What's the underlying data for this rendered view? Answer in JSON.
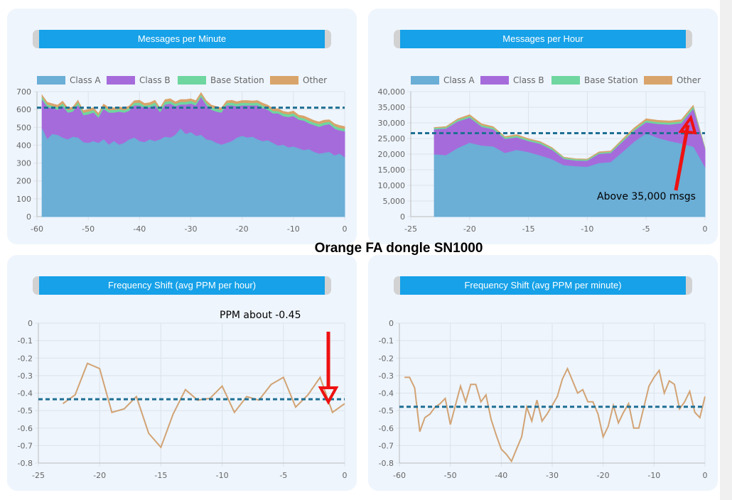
{
  "page_title": "Orange FA dongle SN1000",
  "colors": {
    "panel_bg": "#eef5fd",
    "title_blue": "#16a1e8",
    "class_a": "#6baed6",
    "class_b": "#a66bdb",
    "base_station": "#6fd6a0",
    "other": "#d9a46b",
    "avg_line": "#1f6f93",
    "ppm_line": "#d2a374",
    "arrow": "#ee1111"
  },
  "chart_data": [
    {
      "id": "mpm",
      "type": "area",
      "title": "Messages per Minute",
      "legend": [
        "Class A",
        "Class B",
        "Base Station",
        "Other"
      ],
      "legend_position": "top",
      "x": [
        -59,
        -58,
        -57,
        -56,
        -55,
        -54,
        -53,
        -52,
        -51,
        -50,
        -49,
        -48,
        -47,
        -46,
        -45,
        -44,
        -43,
        -42,
        -41,
        -40,
        -39,
        -38,
        -37,
        -36,
        -35,
        -34,
        -33,
        -32,
        -31,
        -30,
        -29,
        -28,
        -27,
        -26,
        -25,
        -24,
        -23,
        -22,
        -21,
        -20,
        -19,
        -18,
        -17,
        -16,
        -15,
        -14,
        -13,
        -12,
        -11,
        -10,
        -9,
        -8,
        -7,
        -6,
        -5,
        -4,
        -3,
        -2,
        -1,
        0
      ],
      "series": [
        {
          "name": "Class A",
          "values": [
            490,
            430,
            460,
            455,
            440,
            430,
            445,
            440,
            415,
            410,
            420,
            410,
            430,
            400,
            420,
            400,
            410,
            430,
            440,
            420,
            415,
            430,
            420,
            430,
            445,
            440,
            455,
            490,
            460,
            470,
            450,
            455,
            430,
            425,
            410,
            400,
            410,
            420,
            440,
            450,
            440,
            445,
            430,
            420,
            425,
            410,
            395,
            400,
            385,
            390,
            380,
            370,
            375,
            360,
            350,
            355,
            360,
            340,
            350,
            330
          ]
        },
        {
          "name": "Class B",
          "values": [
            160,
            180,
            145,
            140,
            175,
            150,
            140,
            180,
            150,
            160,
            160,
            140,
            170,
            180,
            160,
            185,
            170,
            160,
            180,
            200,
            190,
            180,
            200,
            150,
            180,
            190,
            160,
            135,
            165,
            160,
            170,
            210,
            190,
            170,
            175,
            180,
            210,
            200,
            175,
            170,
            180,
            175,
            190,
            185,
            170,
            165,
            180,
            160,
            170,
            170,
            160,
            165,
            145,
            150,
            150,
            155,
            155,
            150,
            130,
            145
          ]
        },
        {
          "name": "Base Station",
          "values": [
            15,
            14,
            13,
            14,
            15,
            14,
            13,
            15,
            14,
            15,
            14,
            13,
            15,
            14,
            15,
            14,
            13,
            15,
            14,
            15,
            14,
            13,
            15,
            14,
            15,
            14,
            13,
            15,
            14,
            15,
            14,
            13,
            15,
            14,
            15,
            14,
            13,
            15,
            14,
            15,
            14,
            13,
            15,
            14,
            15,
            14,
            13,
            15,
            14,
            15,
            14,
            13,
            15,
            14,
            15,
            14,
            13,
            15,
            14,
            14
          ]
        },
        {
          "name": "Other",
          "values": [
            15,
            16,
            14,
            15,
            16,
            14,
            15,
            16,
            14,
            15,
            16,
            14,
            15,
            16,
            14,
            15,
            16,
            14,
            15,
            16,
            14,
            15,
            16,
            14,
            15,
            16,
            14,
            15,
            16,
            14,
            15,
            16,
            14,
            15,
            16,
            14,
            15,
            16,
            14,
            15,
            16,
            14,
            15,
            16,
            14,
            15,
            16,
            14,
            15,
            16,
            14,
            15,
            16,
            14,
            15,
            16,
            14,
            15,
            16,
            15
          ]
        }
      ],
      "average": 610,
      "xlim": [
        -60,
        0
      ],
      "ylim": [
        0,
        700
      ],
      "xticks": [
        -60,
        -50,
        -40,
        -30,
        -20,
        -10,
        0
      ],
      "yticks": [
        0,
        100,
        200,
        300,
        400,
        500,
        600,
        700
      ],
      "grid": true
    },
    {
      "id": "mph",
      "type": "area",
      "title": "Messages per Hour",
      "legend": [
        "Class A",
        "Class B",
        "Base Station",
        "Other"
      ],
      "legend_position": "top",
      "x": [
        -23,
        -22,
        -21,
        -20,
        -19,
        -18,
        -17,
        -16,
        -15,
        -14,
        -13,
        -12,
        -11,
        -10,
        -9,
        -8,
        -7,
        -6,
        -5,
        -4,
        -3,
        -2,
        -1,
        0
      ],
      "series": [
        {
          "name": "Class A",
          "values": [
            19800,
            19500,
            21800,
            23500,
            22600,
            22300,
            20200,
            21200,
            20500,
            19400,
            18200,
            16300,
            16000,
            15800,
            17000,
            17300,
            20500,
            23800,
            26500,
            25000,
            24000,
            23200,
            22200,
            15500
          ]
        },
        {
          "name": "Class B",
          "values": [
            8000,
            8500,
            8500,
            8000,
            6000,
            5500,
            4500,
            4000,
            3500,
            3700,
            3000,
            2000,
            1800,
            1900,
            2900,
            2900,
            3300,
            3500,
            3500,
            4500,
            5300,
            6500,
            12000,
            5800
          ]
        },
        {
          "name": "Base Station",
          "values": [
            400,
            400,
            500,
            500,
            500,
            500,
            500,
            500,
            500,
            500,
            500,
            400,
            400,
            400,
            400,
            400,
            500,
            500,
            600,
            600,
            600,
            600,
            700,
            300
          ]
        },
        {
          "name": "Other",
          "values": [
            300,
            400,
            500,
            600,
            600,
            500,
            400,
            500,
            400,
            400,
            400,
            300,
            300,
            300,
            400,
            400,
            500,
            600,
            700,
            700,
            700,
            700,
            700,
            300
          ]
        }
      ],
      "average": 26700,
      "xlim": [
        -25,
        0
      ],
      "ylim": [
        0,
        40000
      ],
      "xticks": [
        -25,
        -20,
        -15,
        -10,
        -5,
        0
      ],
      "yticks": [
        0,
        5000,
        10000,
        15000,
        20000,
        25000,
        30000,
        35000,
        40000
      ],
      "ytick_labels": [
        "0",
        "5,000",
        "10,000",
        "15,000",
        "20,000",
        "25,000",
        "30,000",
        "35,000",
        "40,000"
      ],
      "grid": true,
      "annotation": "Above 35,000 msgs"
    },
    {
      "id": "ppmh",
      "type": "line",
      "title": "Frequency Shift (avg PPM per hour)",
      "x": [
        -23,
        -22,
        -21,
        -20,
        -19,
        -18,
        -17,
        -16,
        -15,
        -14,
        -13,
        -12,
        -11,
        -10,
        -9,
        -8,
        -7,
        -6,
        -5,
        -4,
        -3,
        -2,
        -1,
        0
      ],
      "values": [
        -0.46,
        -0.41,
        -0.23,
        -0.26,
        -0.51,
        -0.49,
        -0.42,
        -0.63,
        -0.71,
        -0.52,
        -0.38,
        -0.44,
        -0.43,
        -0.36,
        -0.51,
        -0.42,
        -0.44,
        -0.35,
        -0.31,
        -0.48,
        -0.41,
        -0.31,
        -0.51,
        -0.46
      ],
      "average": -0.435,
      "xlim": [
        -25,
        0
      ],
      "ylim": [
        -0.8,
        0
      ],
      "xticks": [
        -25,
        -20,
        -15,
        -10,
        -5,
        0
      ],
      "yticks": [
        0,
        -0.1,
        -0.2,
        -0.3,
        -0.4,
        -0.5,
        -0.6,
        -0.7,
        -0.8
      ],
      "grid": true,
      "annotation": "PPM about -0.45"
    },
    {
      "id": "ppmm",
      "type": "line",
      "title": "Frequency Shift (avg PPM per minute)",
      "x": [
        -59,
        -58,
        -57,
        -56,
        -55,
        -54,
        -53,
        -52,
        -51,
        -50,
        -49,
        -48,
        -47,
        -46,
        -45,
        -44,
        -43,
        -42,
        -41,
        -40,
        -39,
        -38,
        -37,
        -36,
        -35,
        -34,
        -33,
        -32,
        -31,
        -30,
        -29,
        -28,
        -27,
        -26,
        -25,
        -24,
        -23,
        -22,
        -21,
        -20,
        -19,
        -18,
        -17,
        -16,
        -15,
        -14,
        -13,
        -12,
        -11,
        -10,
        -9,
        -8,
        -7,
        -6,
        -5,
        -4,
        -3,
        -2,
        -1,
        0
      ],
      "values": [
        -0.31,
        -0.31,
        -0.37,
        -0.62,
        -0.54,
        -0.52,
        -0.48,
        -0.46,
        -0.43,
        -0.58,
        -0.47,
        -0.36,
        -0.45,
        -0.35,
        -0.35,
        -0.45,
        -0.41,
        -0.55,
        -0.64,
        -0.72,
        -0.75,
        -0.79,
        -0.72,
        -0.65,
        -0.48,
        -0.56,
        -0.44,
        -0.56,
        -0.52,
        -0.47,
        -0.42,
        -0.32,
        -0.26,
        -0.33,
        -0.4,
        -0.38,
        -0.45,
        -0.45,
        -0.52,
        -0.65,
        -0.59,
        -0.47,
        -0.57,
        -0.51,
        -0.46,
        -0.6,
        -0.6,
        -0.48,
        -0.36,
        -0.31,
        -0.27,
        -0.4,
        -0.33,
        -0.35,
        -0.49,
        -0.45,
        -0.39,
        -0.51,
        -0.54,
        -0.42
      ],
      "average": -0.478,
      "xlim": [
        -60,
        0
      ],
      "ylim": [
        -0.8,
        0
      ],
      "xticks": [
        -60,
        -50,
        -40,
        -30,
        -20,
        -10,
        0
      ],
      "yticks": [
        0,
        -0.1,
        -0.2,
        -0.3,
        -0.4,
        -0.5,
        -0.6,
        -0.7,
        -0.8
      ],
      "grid": true
    }
  ]
}
